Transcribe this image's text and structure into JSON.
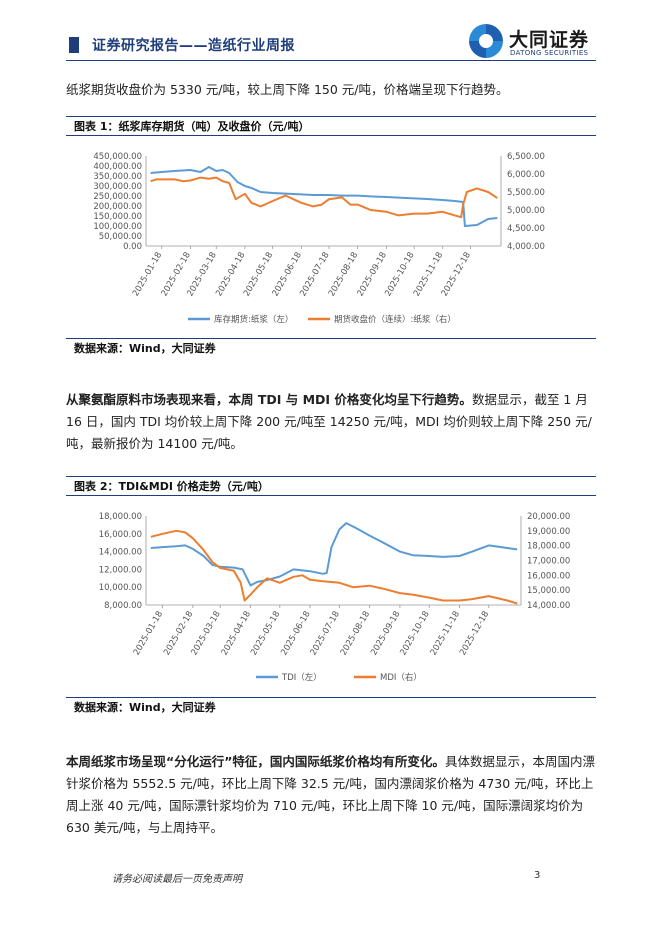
{
  "header": {
    "title": "证券研究报告——造纸行业周报",
    "logo_name": "大同证券",
    "logo_sub": "DATONG SECURITIES"
  },
  "paragraphs": {
    "p1": "纸浆期货收盘价为 5330 元/吨，较上周下降 150 元/吨，价格端呈现下行趋势。",
    "p2_bold": "从聚氨酯原料市场表现来看，本周 TDI 与 MDI 价格变化均呈下行趋势。",
    "p2_rest": "数据显示，截至 1 月 16 日，国内 TDI 均价较上周下降 200 元/吨至 14250 元/吨，MDI 均价则较上周下降 250 元/吨，最新报价为 14100 元/吨。",
    "p3_bold": "本周纸浆市场呈现“分化运行”特征，国内国际纸浆价格均有所变化。",
    "p3_rest": "具体数据显示，本周国内漂针浆价格为 5552.5 元/吨，环比上周下降 32.5 元/吨，国内漂阔浆价格为 4730 元/吨，环比上周上涨 40 元/吨，国际漂针浆均价为 710 元/吨，环比上周下降 10 元/吨，国际漂阔浆均价为 630 美元/吨，与上周持平。"
  },
  "figures": {
    "fig1_title": "图表 1：纸浆库存期货（吨）及收盘价（元/吨）",
    "fig1_source": "数据来源：Wind，大同证券",
    "fig2_title": "图表 2：TDI&MDI 价格走势（元/吨）",
    "fig2_source": "数据来源：Wind，大同证券"
  },
  "footer": {
    "disclaimer": "请务必阅读最后一页免责声明",
    "page": "3"
  },
  "chart_data": [
    {
      "type": "line",
      "title": "图表 1：纸浆库存期货（吨）及收盘价（元/吨）",
      "categories": [
        "2025-01-18",
        "2025-02-18",
        "2025-03-18",
        "2025-04-18",
        "2025-05-18",
        "2025-06-18",
        "2025-07-18",
        "2025-08-18",
        "2025-09-18",
        "2025-10-18",
        "2025-11-18",
        "2025-12-18"
      ],
      "left_axis": {
        "ticks": [
          "0.00",
          "50,000.00",
          "100,000.00",
          "150,000.00",
          "200,000.00",
          "250,000.00",
          "300,000.00",
          "350,000.00",
          "400,000.00",
          "450,000.00"
        ],
        "ylim": [
          0,
          450000
        ]
      },
      "right_axis": {
        "ticks": [
          "4,000.00",
          "4,500.00",
          "5,000.00",
          "5,500.00",
          "6,000.00",
          "6,500.00"
        ],
        "ylim": [
          4000,
          6500
        ]
      },
      "colors": {
        "s1": "#5b9bd5",
        "s2": "#ed7d31"
      },
      "series": [
        {
          "name": "库存期货:纸浆（左）",
          "axis": "left",
          "x": [
            "2025-01-06",
            "2025-01-18",
            "2025-02-01",
            "2025-02-18",
            "2025-03-01",
            "2025-03-10",
            "2025-03-18",
            "2025-03-25",
            "2025-04-01",
            "2025-04-10",
            "2025-04-18",
            "2025-04-25",
            "2025-05-05",
            "2025-05-18",
            "2025-06-01",
            "2025-06-18",
            "2025-07-01",
            "2025-07-18",
            "2025-08-01",
            "2025-08-18",
            "2025-09-01",
            "2025-09-18",
            "2025-10-01",
            "2025-10-18",
            "2025-11-01",
            "2025-11-18",
            "2025-12-01",
            "2025-12-10",
            "2025-12-12",
            "2025-12-25",
            "2026-01-06",
            "2026-01-16"
          ],
          "values": [
            365000,
            370000,
            375000,
            380000,
            370000,
            395000,
            375000,
            380000,
            365000,
            320000,
            300000,
            290000,
            270000,
            265000,
            262000,
            258000,
            255000,
            255000,
            252000,
            252000,
            248000,
            245000,
            242000,
            238000,
            235000,
            230000,
            225000,
            220000,
            100000,
            105000,
            135000,
            140000
          ]
        },
        {
          "name": "期货收盘价（连续）:纸浆（右）",
          "axis": "right",
          "x": [
            "2025-01-06",
            "2025-01-12",
            "2025-01-18",
            "2025-02-01",
            "2025-02-10",
            "2025-02-18",
            "2025-03-01",
            "2025-03-10",
            "2025-03-18",
            "2025-03-25",
            "2025-04-01",
            "2025-04-08",
            "2025-04-18",
            "2025-04-25",
            "2025-05-05",
            "2025-05-18",
            "2025-06-01",
            "2025-06-18",
            "2025-07-01",
            "2025-07-10",
            "2025-07-18",
            "2025-08-01",
            "2025-08-10",
            "2025-08-18",
            "2025-09-01",
            "2025-09-18",
            "2025-10-01",
            "2025-10-18",
            "2025-11-01",
            "2025-11-18",
            "2025-12-01",
            "2025-12-08",
            "2025-12-10",
            "2025-12-14",
            "2025-12-25",
            "2026-01-06",
            "2026-01-16"
          ],
          "values": [
            5800,
            5850,
            5850,
            5850,
            5800,
            5820,
            5900,
            5870,
            5900,
            5800,
            5750,
            5300,
            5450,
            5200,
            5100,
            5250,
            5400,
            5200,
            5100,
            5150,
            5300,
            5350,
            5150,
            5150,
            5000,
            4950,
            4850,
            4900,
            4900,
            4950,
            4850,
            4800,
            5150,
            5500,
            5600,
            5500,
            5330
          ]
        }
      ]
    },
    {
      "type": "line",
      "title": "图表 2：TDI&MDI 价格走势（元/吨）",
      "categories": [
        "2025-01-18",
        "2025-02-18",
        "2025-03-18",
        "2025-04-18",
        "2025-05-18",
        "2025-06-18",
        "2025-07-18",
        "2025-08-18",
        "2025-09-18",
        "2025-10-18",
        "2025-11-18",
        "2025-12-18"
      ],
      "left_axis": {
        "ticks": [
          "8,000.00",
          "10,000.00",
          "12,000.00",
          "14,000.00",
          "16,000.00",
          "18,000.00"
        ],
        "ylim": [
          8000,
          18000
        ]
      },
      "right_axis": {
        "ticks": [
          "14,000.00",
          "15,000.00",
          "16,000.00",
          "17,000.00",
          "18,000.00",
          "19,000.00",
          "20,000.00"
        ],
        "ylim": [
          14000,
          20000
        ]
      },
      "colors": {
        "s1": "#5b9bd5",
        "s2": "#ed7d31"
      },
      "series": [
        {
          "name": "TDI（左）",
          "axis": "left",
          "x": [
            "2025-01-06",
            "2025-01-18",
            "2025-02-01",
            "2025-02-10",
            "2025-02-18",
            "2025-03-01",
            "2025-03-10",
            "2025-03-18",
            "2025-04-01",
            "2025-04-10",
            "2025-04-18",
            "2025-04-25",
            "2025-05-05",
            "2025-05-18",
            "2025-06-01",
            "2025-06-18",
            "2025-07-01",
            "2025-07-05",
            "2025-07-10",
            "2025-07-18",
            "2025-07-25",
            "2025-08-05",
            "2025-08-18",
            "2025-09-01",
            "2025-09-18",
            "2025-10-01",
            "2025-10-18",
            "2025-11-01",
            "2025-11-18",
            "2025-12-01",
            "2025-12-18",
            "2026-01-06",
            "2026-01-16"
          ],
          "values": [
            14400,
            14500,
            14600,
            14700,
            14300,
            13500,
            12500,
            12300,
            12200,
            12000,
            10200,
            10600,
            10800,
            11200,
            12000,
            11800,
            11500,
            11600,
            14500,
            16500,
            17200,
            16600,
            15800,
            15000,
            14000,
            13600,
            13500,
            13400,
            13500,
            14000,
            14700,
            14400,
            14250
          ]
        },
        {
          "name": "MDI（右）",
          "axis": "right",
          "x": [
            "2025-01-06",
            "2025-01-18",
            "2025-02-01",
            "2025-02-10",
            "2025-02-18",
            "2025-03-01",
            "2025-03-10",
            "2025-03-18",
            "2025-04-01",
            "2025-04-08",
            "2025-04-12",
            "2025-04-18",
            "2025-04-25",
            "2025-05-05",
            "2025-05-18",
            "2025-06-01",
            "2025-06-10",
            "2025-06-18",
            "2025-07-01",
            "2025-07-18",
            "2025-08-01",
            "2025-08-18",
            "2025-09-01",
            "2025-09-18",
            "2025-10-01",
            "2025-10-18",
            "2025-11-01",
            "2025-11-18",
            "2025-12-01",
            "2025-12-18",
            "2026-01-06",
            "2026-01-16"
          ],
          "values": [
            18600,
            18800,
            19000,
            18900,
            18500,
            17700,
            16900,
            16500,
            16300,
            15500,
            14300,
            14700,
            15200,
            15800,
            15500,
            15900,
            16000,
            15700,
            15600,
            15500,
            15200,
            15300,
            15100,
            14800,
            14700,
            14500,
            14300,
            14300,
            14400,
            14600,
            14300,
            14100
          ]
        }
      ]
    }
  ]
}
